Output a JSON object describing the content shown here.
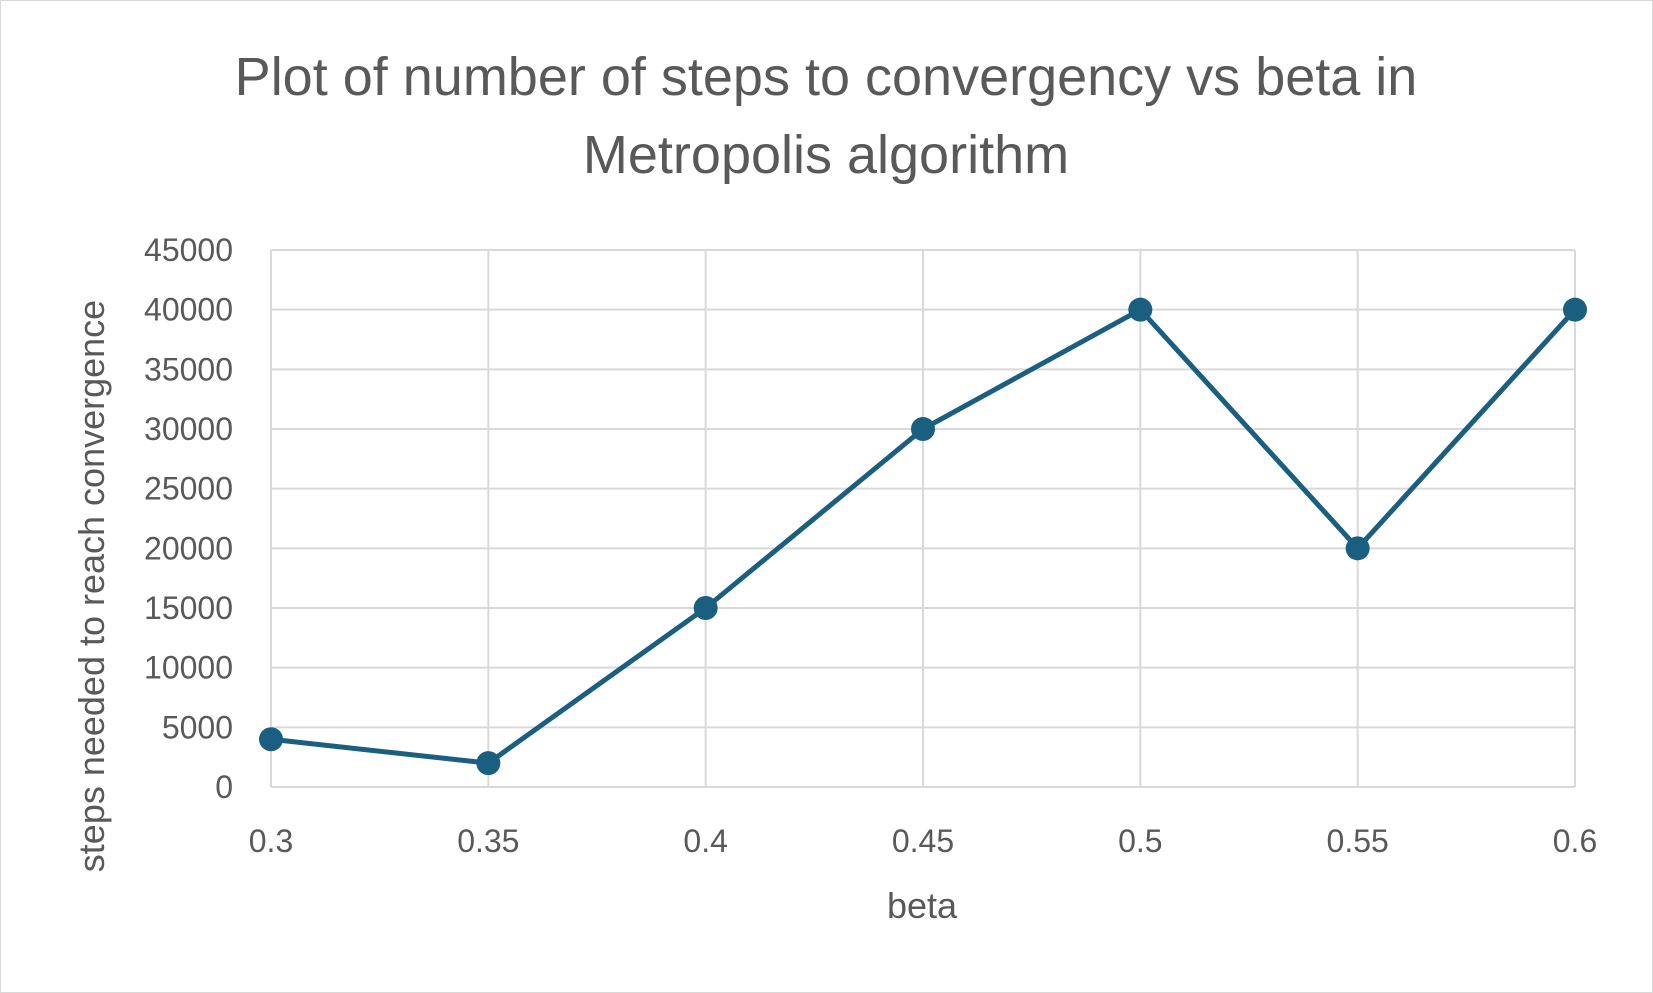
{
  "chart_data": {
    "type": "line",
    "title_lines": [
      "Plot of number of steps to convergency vs beta in",
      "Metropolis algorithm"
    ],
    "xlabel": "beta",
    "ylabel": "steps needed to reach convergence",
    "x": [
      0.3,
      0.35,
      0.4,
      0.45,
      0.5,
      0.55,
      0.6
    ],
    "x_tick_labels": [
      "0.3",
      "0.35",
      "0.4",
      "0.45",
      "0.5",
      "0.55",
      "0.6"
    ],
    "series": [
      {
        "values": [
          4000,
          2000,
          15000,
          30000,
          40000,
          20000,
          40000
        ],
        "color": "#1a5e80"
      }
    ],
    "xlim": [
      0.3,
      0.6
    ],
    "ylim": [
      0,
      45000
    ],
    "y_ticks": [
      0,
      5000,
      10000,
      15000,
      20000,
      25000,
      30000,
      35000,
      40000,
      45000
    ],
    "y_tick_labels": [
      "0",
      "5000",
      "10000",
      "15000",
      "20000",
      "25000",
      "30000",
      "35000",
      "40000",
      "45000"
    ],
    "grid": true,
    "markers": true
  }
}
